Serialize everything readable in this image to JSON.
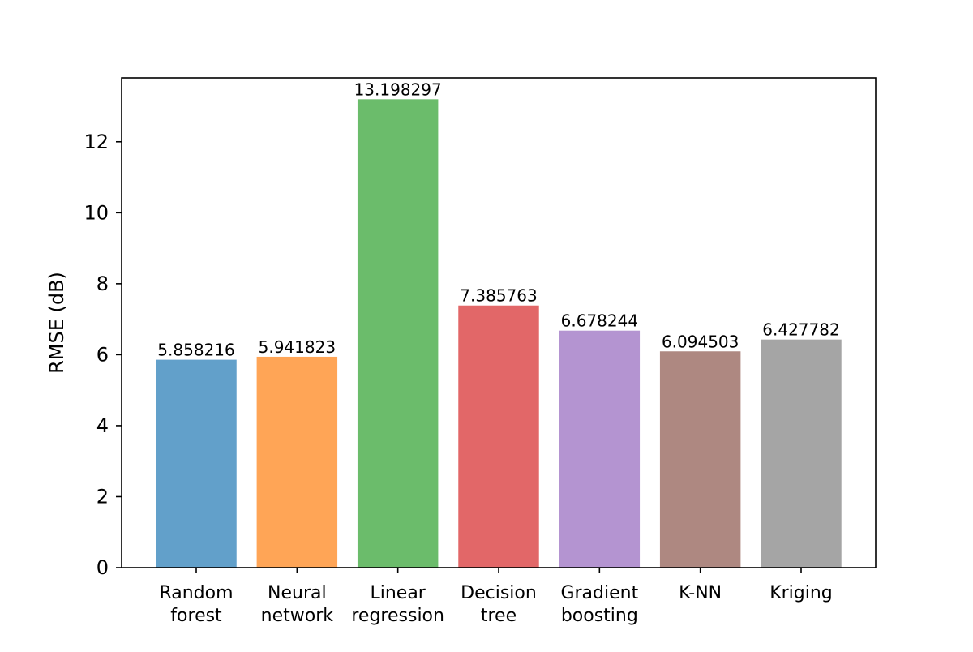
{
  "chart_data": {
    "type": "bar",
    "title": "",
    "xlabel": "",
    "ylabel": "RMSE (dB)",
    "ylim": [
      0,
      13.8
    ],
    "yticks": [
      0,
      2,
      4,
      6,
      8,
      10,
      12
    ],
    "ytick_labels": [
      "0",
      "2",
      "4",
      "6",
      "8",
      "10",
      "12"
    ],
    "categories": [
      [
        "Random",
        "forest"
      ],
      [
        "Neural",
        "network"
      ],
      [
        "Linear",
        "regression"
      ],
      [
        "Decision",
        "tree"
      ],
      [
        "Gradient",
        "boosting"
      ],
      [
        "K-NN"
      ],
      [
        "Kriging"
      ]
    ],
    "values": [
      5.858216,
      5.941823,
      13.198297,
      7.385763,
      6.678244,
      6.094503,
      6.427782
    ],
    "value_labels": [
      "5.858216",
      "5.941823",
      "13.198297",
      "7.385763",
      "6.678244",
      "6.094503",
      "6.427782"
    ],
    "colors": [
      "#1f77b4",
      "#ff7f0e",
      "#2ca02c",
      "#d62728",
      "#9467bd",
      "#8c564b",
      "#7f7f7f"
    ],
    "bar_opacity": 0.7,
    "grid": false,
    "legend": "none"
  }
}
